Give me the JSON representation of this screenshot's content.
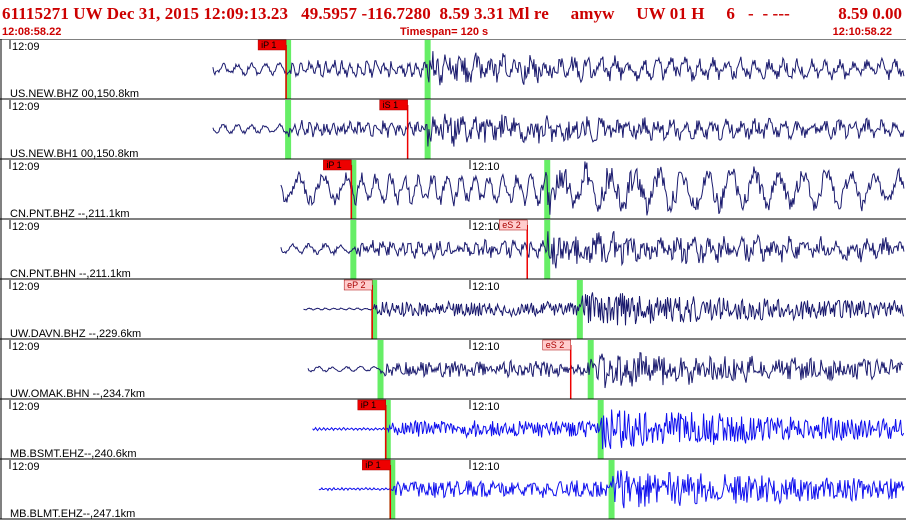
{
  "header": {
    "title": "61115271 UW Dec 31, 2015 12:09:13.23   49.5957 -116.7280  8.59 3.31 Ml re     amyw     UW 01 H     6   -  - ---",
    "right": "8.59 0.00",
    "start_time": "12:08:58.22",
    "timespan": "Timespan= 120 s",
    "end_time": "12:10:58.22"
  },
  "colors": {
    "header_red": "#cc0000",
    "trace_navy": "#1a1a6e",
    "trace_blue": "#1010ee",
    "pick_green": "#66ee66",
    "pick_red": "#ee0000",
    "pick_pink": "#ffcccc"
  },
  "channels": [
    {
      "label": "US.NEW.BHZ 00,150.8km",
      "tick1": "12:09",
      "tick2": "",
      "color": "navy",
      "start": 0.235,
      "p_pick": 0.318,
      "s_pick": 0.472,
      "pick_text": "iP 1",
      "pick_kind": "P",
      "amp": 0.28,
      "amp_after": 0.45,
      "period": 14
    },
    {
      "label": "US.NEW.BH1 00,150.8km",
      "tick1": "12:09",
      "tick2": "",
      "color": "navy",
      "start": 0.235,
      "p_pick": 0.318,
      "s_pick": 0.472,
      "pick_text": "iS 1",
      "pick_kind": "S",
      "amp": 0.22,
      "amp_after": 0.5,
      "period": 14
    },
    {
      "label": "CN.PNT.BHZ --,211.1km",
      "tick1": "12:09",
      "tick2": "12:10",
      "color": "navy",
      "start": 0.31,
      "p_pick": 0.39,
      "s_pick": 0.604,
      "pick_text": "iP 1",
      "pick_kind": "P",
      "amp": 0.7,
      "amp_after": 0.55,
      "period": 24
    },
    {
      "label": "CN.PNT.BHN --,211.1km",
      "tick1": "12:09",
      "tick2": "12:10",
      "color": "navy",
      "start": 0.31,
      "p_pick": 0.39,
      "s_pick": 0.604,
      "pick_text": "eS 2",
      "pick_kind": "S",
      "amp": 0.25,
      "amp_after": 0.55,
      "period": 16
    },
    {
      "label": "UW.DAVN.BHZ --,229.6km",
      "tick1": "12:09",
      "tick2": "12:10",
      "color": "navy",
      "start": 0.335,
      "p_pick": 0.413,
      "s_pick": 0.64,
      "pick_text": "eP 2",
      "pick_kind": "P",
      "amp": 0.05,
      "amp_after": 0.6,
      "period": 8
    },
    {
      "label": "UW.OMAK.BHN --,234.7km",
      "tick1": "12:09",
      "tick2": "12:10",
      "color": "navy",
      "start": 0.34,
      "p_pick": 0.42,
      "s_pick": 0.652,
      "pick_text": "eS 2",
      "pick_kind": "S",
      "amp": 0.12,
      "amp_after": 0.6,
      "period": 14
    },
    {
      "label": "MB.BSMT.EHZ--,240.6km",
      "tick1": "12:09",
      "tick2": "12:10",
      "color": "blue",
      "start": 0.345,
      "p_pick": 0.428,
      "s_pick": 0.663,
      "pick_text": "iP 1",
      "pick_kind": "P",
      "amp": 0.06,
      "amp_after": 0.7,
      "period": 4
    },
    {
      "label": "MB.BLMT.EHZ--,247.1km",
      "tick1": "12:09",
      "tick2": "12:10",
      "color": "blue",
      "start": 0.352,
      "p_pick": 0.433,
      "s_pick": 0.675,
      "pick_text": "iP 1",
      "pick_kind": "P",
      "amp": 0.06,
      "amp_after": 0.7,
      "period": 4
    }
  ]
}
